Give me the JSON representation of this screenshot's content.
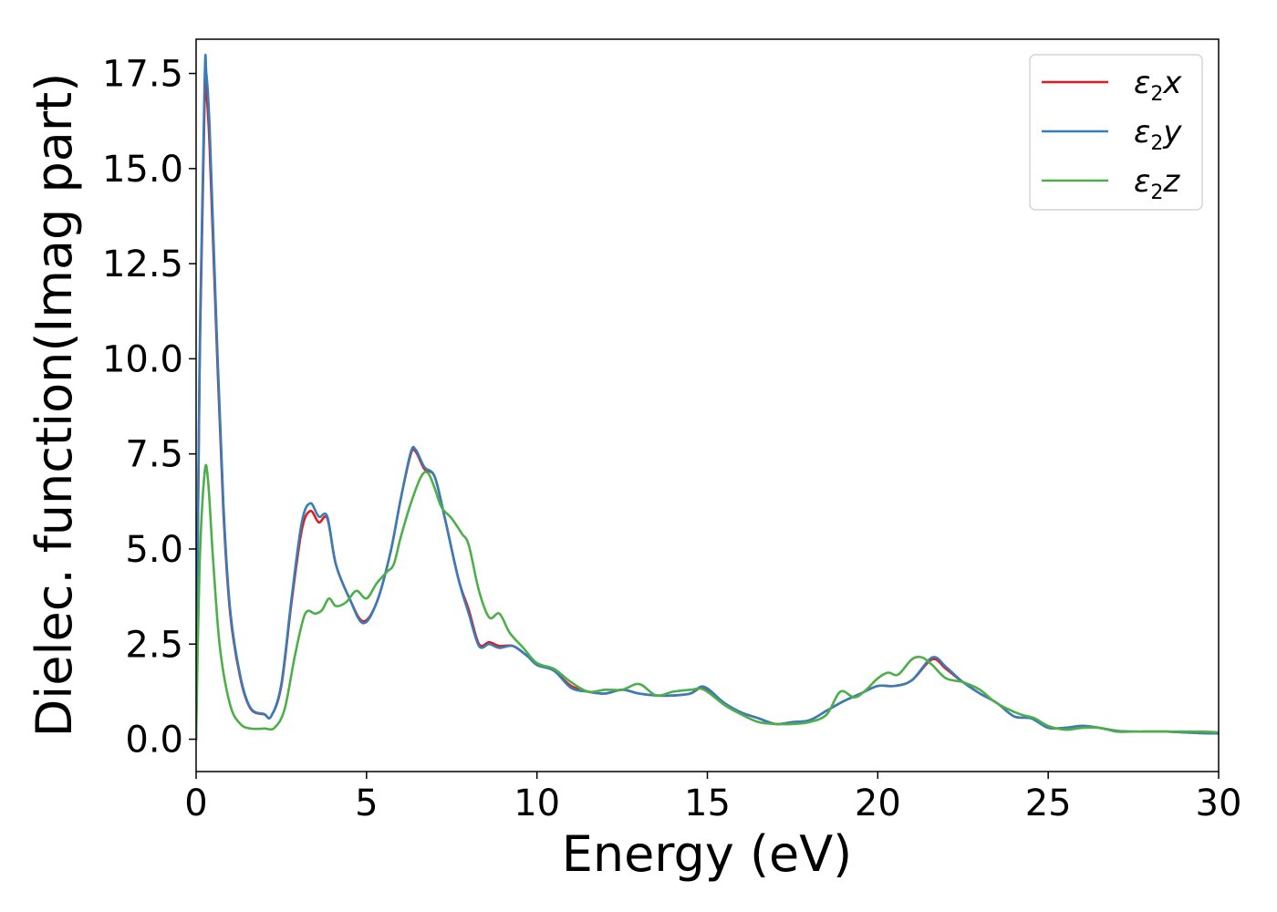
{
  "chart_data": {
    "type": "line",
    "title": "",
    "xlabel": "Energy (eV)",
    "ylabel": "Dielec. function(Imag part)",
    "xlim": [
      0,
      30
    ],
    "ylim": [
      -0.85,
      18.4
    ],
    "xticks": [
      "0",
      "5",
      "10",
      "15",
      "20",
      "25",
      "30"
    ],
    "yticks": [
      "0.0",
      "2.5",
      "5.0",
      "7.5",
      "10.0",
      "12.5",
      "15.0",
      "17.5"
    ],
    "grid": false,
    "legend_position": "top-right",
    "series": [
      {
        "name": "ε2x",
        "legend_main": "ε",
        "legend_sub": "2",
        "legend_tail": "x",
        "color": "#e41a1c",
        "x": [
          0.0,
          0.1,
          0.25,
          0.3,
          0.4,
          0.6,
          0.8,
          1.0,
          1.3,
          1.6,
          2.0,
          2.2,
          2.5,
          2.8,
          3.1,
          3.35,
          3.6,
          3.85,
          4.1,
          4.5,
          4.9,
          5.3,
          5.7,
          6.0,
          6.3,
          6.45,
          6.7,
          7.0,
          7.3,
          7.7,
          8.0,
          8.3,
          8.6,
          8.9,
          9.3,
          9.7,
          10.0,
          10.5,
          11.0,
          11.5,
          12.0,
          12.5,
          13.0,
          13.5,
          14.0,
          14.5,
          14.9,
          15.5,
          16.0,
          16.5,
          17.0,
          17.5,
          18.0,
          18.5,
          19.0,
          19.5,
          20.0,
          20.5,
          21.0,
          21.6,
          22.0,
          22.5,
          23.0,
          23.5,
          24.0,
          24.5,
          25.0,
          25.5,
          26.0,
          26.5,
          27.0,
          27.5,
          28.0,
          28.5,
          29.0,
          29.5,
          30.0
        ],
        "y": [
          0.0,
          9.5,
          16.8,
          17.0,
          15.5,
          10.5,
          6.0,
          3.3,
          1.6,
          0.8,
          0.65,
          0.6,
          1.4,
          3.6,
          5.5,
          6.0,
          5.7,
          5.8,
          4.6,
          3.7,
          3.1,
          3.6,
          4.9,
          6.3,
          7.5,
          7.55,
          7.1,
          6.9,
          5.8,
          4.2,
          3.4,
          2.5,
          2.55,
          2.45,
          2.45,
          2.2,
          2.0,
          1.8,
          1.4,
          1.25,
          1.2,
          1.3,
          1.2,
          1.15,
          1.15,
          1.2,
          1.35,
          0.95,
          0.7,
          0.55,
          0.4,
          0.45,
          0.5,
          0.75,
          1.0,
          1.2,
          1.4,
          1.4,
          1.55,
          2.1,
          1.85,
          1.5,
          1.2,
          0.95,
          0.6,
          0.55,
          0.3,
          0.3,
          0.35,
          0.3,
          0.22,
          0.2,
          0.2,
          0.2,
          0.18,
          0.16,
          0.15
        ]
      },
      {
        "name": "ε2y",
        "legend_main": "ε",
        "legend_sub": "2",
        "legend_tail": "y",
        "color": "#377eb8",
        "x": [
          0.0,
          0.1,
          0.25,
          0.3,
          0.4,
          0.6,
          0.8,
          1.0,
          1.3,
          1.6,
          2.0,
          2.2,
          2.5,
          2.8,
          3.1,
          3.35,
          3.6,
          3.85,
          4.1,
          4.5,
          4.9,
          5.3,
          5.7,
          6.0,
          6.3,
          6.45,
          6.7,
          7.0,
          7.3,
          7.7,
          8.0,
          8.3,
          8.6,
          8.9,
          9.3,
          9.7,
          10.0,
          10.5,
          11.0,
          11.5,
          12.0,
          12.5,
          13.0,
          13.5,
          14.0,
          14.5,
          14.9,
          15.5,
          16.0,
          16.5,
          17.0,
          17.5,
          18.0,
          18.5,
          19.0,
          19.5,
          20.0,
          20.5,
          21.0,
          21.6,
          22.0,
          22.5,
          23.0,
          23.5,
          24.0,
          24.5,
          25.0,
          25.5,
          26.0,
          26.5,
          27.0,
          27.5,
          28.0,
          28.5,
          29.0,
          29.5,
          30.0
        ],
        "y": [
          0.0,
          9.8,
          17.3,
          17.5,
          16.0,
          10.8,
          6.2,
          3.4,
          1.65,
          0.82,
          0.66,
          0.6,
          1.45,
          3.7,
          5.7,
          6.2,
          5.85,
          5.85,
          4.6,
          3.7,
          3.05,
          3.6,
          4.9,
          6.3,
          7.55,
          7.6,
          7.15,
          6.9,
          5.8,
          4.2,
          3.3,
          2.45,
          2.5,
          2.4,
          2.45,
          2.2,
          1.95,
          1.8,
          1.35,
          1.25,
          1.2,
          1.3,
          1.2,
          1.15,
          1.15,
          1.2,
          1.38,
          0.95,
          0.7,
          0.55,
          0.4,
          0.45,
          0.5,
          0.75,
          1.0,
          1.2,
          1.4,
          1.4,
          1.55,
          2.15,
          1.9,
          1.5,
          1.2,
          0.95,
          0.6,
          0.55,
          0.3,
          0.3,
          0.35,
          0.3,
          0.22,
          0.2,
          0.2,
          0.2,
          0.18,
          0.16,
          0.15
        ]
      },
      {
        "name": "ε2z",
        "legend_main": "ε",
        "legend_sub": "2",
        "legend_tail": "z",
        "color": "#4daf4a",
        "x": [
          0.0,
          0.1,
          0.25,
          0.35,
          0.5,
          0.7,
          1.0,
          1.3,
          1.6,
          2.0,
          2.3,
          2.6,
          2.9,
          3.2,
          3.5,
          3.7,
          3.9,
          4.1,
          4.4,
          4.7,
          5.0,
          5.3,
          5.6,
          5.8,
          6.0,
          6.3,
          6.6,
          6.8,
          7.0,
          7.2,
          7.5,
          7.8,
          8.0,
          8.3,
          8.6,
          8.9,
          9.2,
          9.6,
          10.0,
          10.5,
          11.0,
          11.5,
          12.0,
          12.5,
          13.0,
          13.5,
          14.0,
          14.5,
          14.9,
          15.5,
          16.0,
          16.5,
          17.0,
          17.5,
          18.0,
          18.5,
          18.9,
          19.3,
          19.6,
          20.0,
          20.3,
          20.6,
          21.0,
          21.3,
          21.6,
          22.0,
          22.5,
          23.0,
          23.4,
          23.8,
          24.2,
          24.6,
          25.0,
          25.5,
          26.0,
          26.5,
          27.0,
          27.5,
          28.0,
          28.5,
          29.0,
          29.5,
          30.0
        ],
        "y": [
          0.0,
          4.5,
          7.0,
          6.8,
          4.7,
          2.4,
          0.9,
          0.4,
          0.28,
          0.28,
          0.3,
          0.8,
          2.2,
          3.3,
          3.3,
          3.4,
          3.7,
          3.5,
          3.6,
          3.9,
          3.7,
          4.1,
          4.4,
          4.6,
          5.3,
          6.2,
          6.9,
          7.0,
          6.6,
          6.1,
          5.8,
          5.4,
          5.1,
          3.9,
          3.2,
          3.3,
          2.8,
          2.4,
          2.0,
          1.85,
          1.5,
          1.25,
          1.3,
          1.3,
          1.45,
          1.15,
          1.25,
          1.3,
          1.3,
          0.9,
          0.65,
          0.45,
          0.4,
          0.4,
          0.45,
          0.65,
          1.25,
          1.1,
          1.25,
          1.6,
          1.75,
          1.7,
          2.1,
          2.15,
          1.95,
          1.6,
          1.5,
          1.3,
          1.0,
          0.8,
          0.65,
          0.55,
          0.35,
          0.25,
          0.3,
          0.3,
          0.2,
          0.2,
          0.2,
          0.2,
          0.2,
          0.2,
          0.18
        ]
      }
    ]
  }
}
